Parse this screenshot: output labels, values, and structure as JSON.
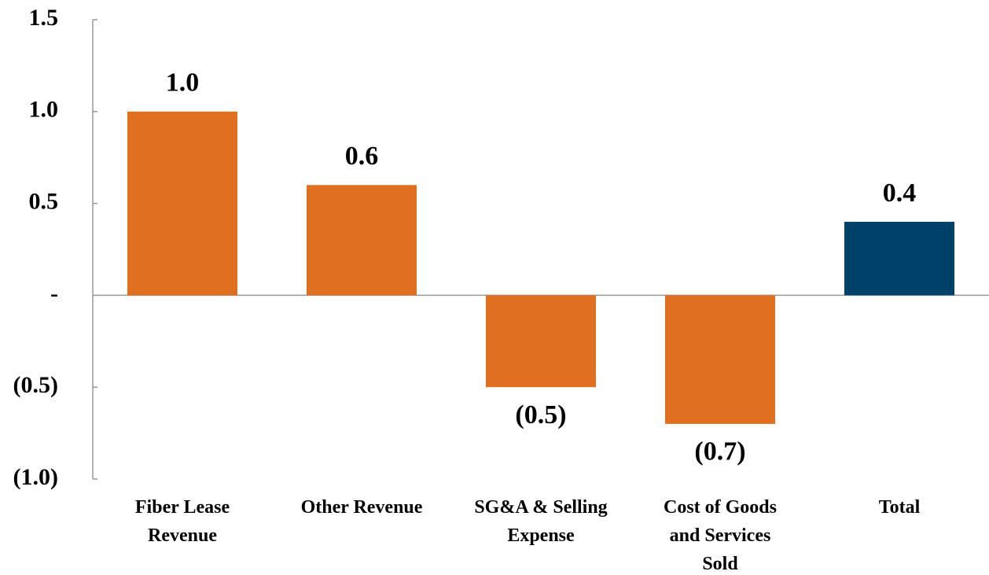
{
  "chart_data": {
    "type": "bar",
    "categories": [
      "Fiber Lease\nRevenue",
      "Other Revenue",
      "SG&A & Selling\nExpense",
      "Cost of Goods\nand Services\nSold",
      "Total"
    ],
    "values": [
      1.0,
      0.6,
      -0.5,
      -0.7,
      0.4
    ],
    "value_labels": [
      "1.0",
      "0.6",
      "(0.5)",
      "(0.7)",
      "0.4"
    ],
    "colors": [
      "#e07020",
      "#e07020",
      "#e07020",
      "#e07020",
      "#00416a"
    ],
    "ylim": [
      -1,
      1.5
    ],
    "yticks": [
      1.5,
      {
        "value": 1,
        "label": "1.0"
      },
      0.5,
      {
        "value": 0,
        "label": "-"
      },
      {
        "value": -0.5,
        "label": "(0.5)"
      },
      {
        "value": -1,
        "label": "(1.0)"
      }
    ],
    "grid": false
  }
}
